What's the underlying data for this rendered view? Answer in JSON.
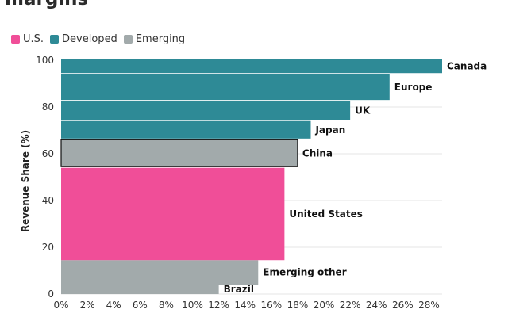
{
  "title_lines": [
    "",
    "margins"
  ],
  "legend": [
    {
      "label": "U.S.",
      "color": "#f04e98"
    },
    {
      "label": "Developed",
      "color": "#2e8a96"
    },
    {
      "label": "Emerging",
      "color": "#a2aaab"
    }
  ],
  "chart_data": {
    "type": "bar",
    "orientation": "horizontal-variable-width",
    "ylabel": "Revenue Share (%)",
    "xlabel": "",
    "xlim": [
      0,
      29
    ],
    "ylim": [
      0,
      100
    ],
    "x_ticks": [
      "0%",
      "2%",
      "4%",
      "6%",
      "8%",
      "10%",
      "12%",
      "14%",
      "16%",
      "18%",
      "20%",
      "22%",
      "24%",
      "26%",
      "28%"
    ],
    "y_ticks": [
      "0",
      "20",
      "40",
      "60",
      "80",
      "100"
    ],
    "grid": true,
    "series": [
      {
        "name": "Brazil",
        "group": "Emerging",
        "value": 12,
        "share_from": 0,
        "share_to": 4,
        "highlight": false
      },
      {
        "name": "Emerging other",
        "group": "Emerging",
        "value": 15,
        "share_from": 4,
        "share_to": 14.5,
        "highlight": false
      },
      {
        "name": "United States",
        "group": "U.S.",
        "value": 17,
        "share_from": 14.5,
        "share_to": 54,
        "highlight": false
      },
      {
        "name": "China",
        "group": "Emerging",
        "value": 18,
        "share_from": 54.5,
        "share_to": 66,
        "highlight": true
      },
      {
        "name": "Japan",
        "group": "Developed",
        "value": 19,
        "share_from": 66.5,
        "share_to": 74,
        "highlight": false
      },
      {
        "name": "UK",
        "group": "Developed",
        "value": 22,
        "share_from": 74.5,
        "share_to": 82.5,
        "highlight": false
      },
      {
        "name": "Europe",
        "group": "Developed",
        "value": 25,
        "share_from": 83,
        "share_to": 94,
        "highlight": false
      },
      {
        "name": "Canada",
        "group": "Developed",
        "value": 29,
        "share_from": 94.5,
        "share_to": 100.5,
        "highlight": false
      }
    ]
  }
}
